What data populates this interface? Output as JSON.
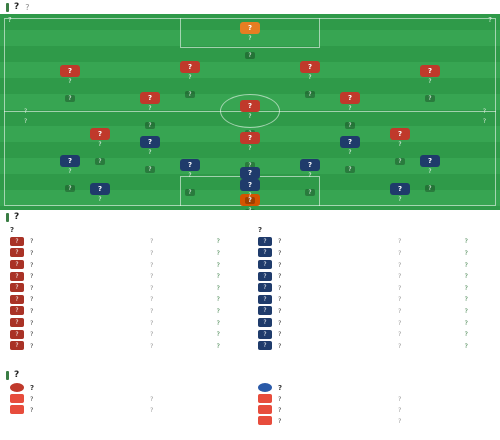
{
  "lineup": {
    "title": "?",
    "subtitle": "?",
    "home_team": "?",
    "away_team": "?",
    "home_coach": "?",
    "away_coach": "?",
    "home_formation": "?",
    "away_formation": "?",
    "home_players": [
      {
        "no": "?",
        "name": "?",
        "score": "?",
        "gk": true
      },
      {
        "no": "?",
        "name": "?",
        "score": "?"
      },
      {
        "no": "?",
        "name": "?",
        "score": "?"
      },
      {
        "no": "?",
        "name": "?",
        "score": "?"
      },
      {
        "no": "?",
        "name": "?",
        "score": "?"
      },
      {
        "no": "?",
        "name": "?",
        "score": "?"
      },
      {
        "no": "?",
        "name": "?",
        "score": "?"
      },
      {
        "no": "?",
        "name": "?",
        "score": "?"
      },
      {
        "no": "?",
        "name": "?",
        "score": "?"
      },
      {
        "no": "?",
        "name": "?",
        "score": "?"
      },
      {
        "no": "?",
        "name": "?",
        "score": "?"
      }
    ],
    "away_players": [
      {
        "no": "?",
        "name": "?",
        "score": "?",
        "gk": true
      },
      {
        "no": "?",
        "name": "?",
        "score": "?"
      },
      {
        "no": "?",
        "name": "?",
        "score": "?"
      },
      {
        "no": "?",
        "name": "?",
        "score": "?"
      },
      {
        "no": "?",
        "name": "?",
        "score": "?"
      },
      {
        "no": "?",
        "name": "?",
        "score": "?"
      },
      {
        "no": "?",
        "name": "?",
        "score": "?"
      },
      {
        "no": "?",
        "name": "?",
        "score": "?"
      },
      {
        "no": "?",
        "name": "?",
        "score": "?"
      },
      {
        "no": "?",
        "name": "?",
        "score": "?"
      },
      {
        "no": "?",
        "name": "?",
        "score": "?"
      }
    ]
  },
  "subs": {
    "title": "?",
    "home_team": "?",
    "away_team": "?",
    "home": [
      {
        "no": "?",
        "name": "?",
        "pos": "?",
        "min": "?"
      },
      {
        "no": "?",
        "name": "?",
        "pos": "?",
        "min": "?"
      },
      {
        "no": "?",
        "name": "?",
        "pos": "?",
        "min": "?"
      },
      {
        "no": "?",
        "name": "?",
        "pos": "?",
        "min": "?"
      },
      {
        "no": "?",
        "name": "?",
        "pos": "?",
        "min": "?"
      },
      {
        "no": "?",
        "name": "?",
        "pos": "?",
        "min": "?"
      },
      {
        "no": "?",
        "name": "?",
        "pos": "?",
        "min": "?"
      },
      {
        "no": "?",
        "name": "?",
        "pos": "?",
        "min": "?"
      },
      {
        "no": "?",
        "name": "?",
        "pos": "?",
        "min": "?"
      },
      {
        "no": "?",
        "name": "?",
        "pos": "?",
        "min": "?"
      }
    ],
    "away": [
      {
        "no": "?",
        "name": "?",
        "pos": "?",
        "min": "?"
      },
      {
        "no": "?",
        "name": "?",
        "pos": "?",
        "min": "?"
      },
      {
        "no": "?",
        "name": "?",
        "pos": "?",
        "min": "?"
      },
      {
        "no": "?",
        "name": "?",
        "pos": "?",
        "min": "?"
      },
      {
        "no": "?",
        "name": "?",
        "pos": "?",
        "min": "?"
      },
      {
        "no": "?",
        "name": "?",
        "pos": "?",
        "min": "?"
      },
      {
        "no": "?",
        "name": "?",
        "pos": "?",
        "min": "?"
      },
      {
        "no": "?",
        "name": "?",
        "pos": "?",
        "min": "?"
      },
      {
        "no": "?",
        "name": "?",
        "pos": "?",
        "min": "?"
      },
      {
        "no": "?",
        "name": "?",
        "pos": "?",
        "min": "?"
      }
    ]
  },
  "injuries": {
    "title": "?",
    "home_team": "?",
    "away_team": "?",
    "home": [
      {
        "name": "?",
        "reason": "?"
      },
      {
        "name": "?",
        "reason": "?"
      }
    ],
    "away": [
      {
        "name": "?",
        "reason": "?"
      },
      {
        "name": "?",
        "reason": "?"
      },
      {
        "name": "?",
        "reason": "?"
      }
    ]
  }
}
